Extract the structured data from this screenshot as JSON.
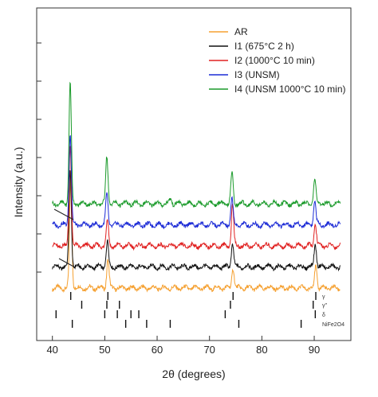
{
  "chart_data": {
    "type": "line",
    "xlabel": "2θ (degrees)",
    "ylabel": "Intensity (a.u.)",
    "xlim": [
      37,
      97
    ],
    "xticks": [
      40,
      50,
      60,
      70,
      80,
      90
    ],
    "xtick_labels": [
      "40",
      "50",
      "60",
      "70",
      "80",
      "90"
    ],
    "y_ticks_unlabeled": true,
    "legend_position": "top-right",
    "series": [
      {
        "name": "AR",
        "color": "#f5a030",
        "offset": 0,
        "peaks": [
          [
            43.5,
            10.8
          ],
          [
            50.6,
            2.8
          ],
          [
            74.5,
            2.0
          ],
          [
            90.3,
            2.2
          ]
        ]
      },
      {
        "name": "I1 (675°C 2 h)",
        "color": "#111111",
        "offset": 1,
        "peaks": [
          [
            43.4,
            9.5
          ],
          [
            50.5,
            2.5
          ],
          [
            74.4,
            2.3
          ],
          [
            90.2,
            2.3
          ]
        ]
      },
      {
        "name": "I2 (1000°C 10 min)",
        "color": "#e02020",
        "offset": 2,
        "peaks": [
          [
            43.4,
            10.0
          ],
          [
            50.5,
            2.5
          ],
          [
            74.4,
            4.0
          ],
          [
            90.2,
            2.2
          ]
        ]
      },
      {
        "name": "I3 (UNSM)",
        "color": "#1c2bd6",
        "offset": 3,
        "peaks": [
          [
            43.4,
            9.0
          ],
          [
            50.4,
            2.9
          ],
          [
            74.3,
            2.5
          ],
          [
            90.1,
            2.4
          ]
        ]
      },
      {
        "name": "I4 (UNSM 1000°C 10 min)",
        "color": "#1a9a2a",
        "offset": 4,
        "peaks": [
          [
            43.4,
            11.8
          ],
          [
            50.4,
            4.6
          ],
          [
            74.3,
            2.9
          ],
          [
            90.1,
            2.4
          ],
          [
            62.6,
            0.5
          ]
        ]
      }
    ],
    "phases": [
      {
        "label": "γ",
        "positions": [
          43.5,
          50.6,
          74.5,
          90.3
        ]
      },
      {
        "label": "γ''",
        "positions": [
          45.6,
          50.4,
          52.8,
          74.0,
          89.8
        ]
      },
      {
        "label": "δ",
        "positions": [
          40.7,
          50.0,
          52.4,
          55.0,
          56.5,
          73.0,
          90.2
        ]
      },
      {
        "label": "NiFe2O4",
        "positions": [
          43.8,
          54.0,
          58.0,
          62.5,
          75.6,
          87.5
        ]
      }
    ]
  }
}
